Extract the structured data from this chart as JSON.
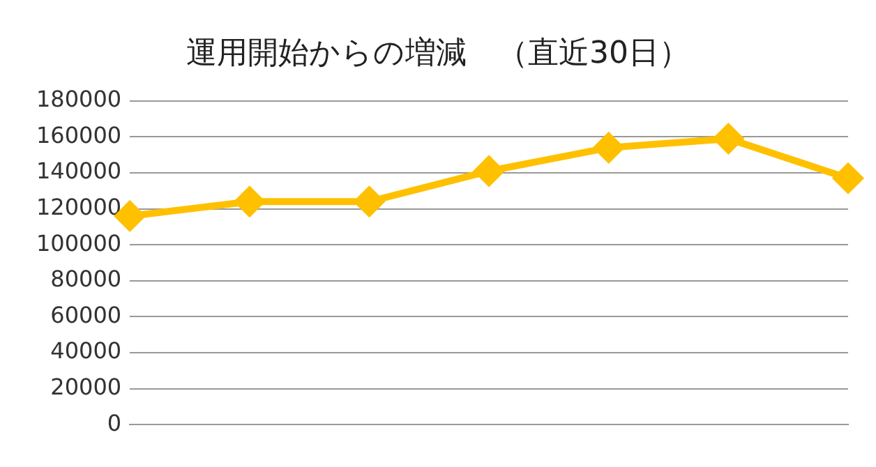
{
  "chart_data": {
    "type": "line",
    "title": "運用開始からの増減　（直近30日）",
    "categories": [
      null,
      null,
      null,
      null,
      null,
      null,
      null
    ],
    "series": [
      {
        "color": "#ffc000",
        "values": [
          116000,
          124000,
          124000,
          141000,
          154000,
          159000,
          137000
        ]
      }
    ],
    "ylim": [
      0,
      180000
    ],
    "yticks": [
      0,
      20000,
      40000,
      60000,
      80000,
      100000,
      120000,
      140000,
      160000,
      180000
    ],
    "grid": "y",
    "legend": false,
    "marker": "diamond",
    "line_style": "solid"
  }
}
